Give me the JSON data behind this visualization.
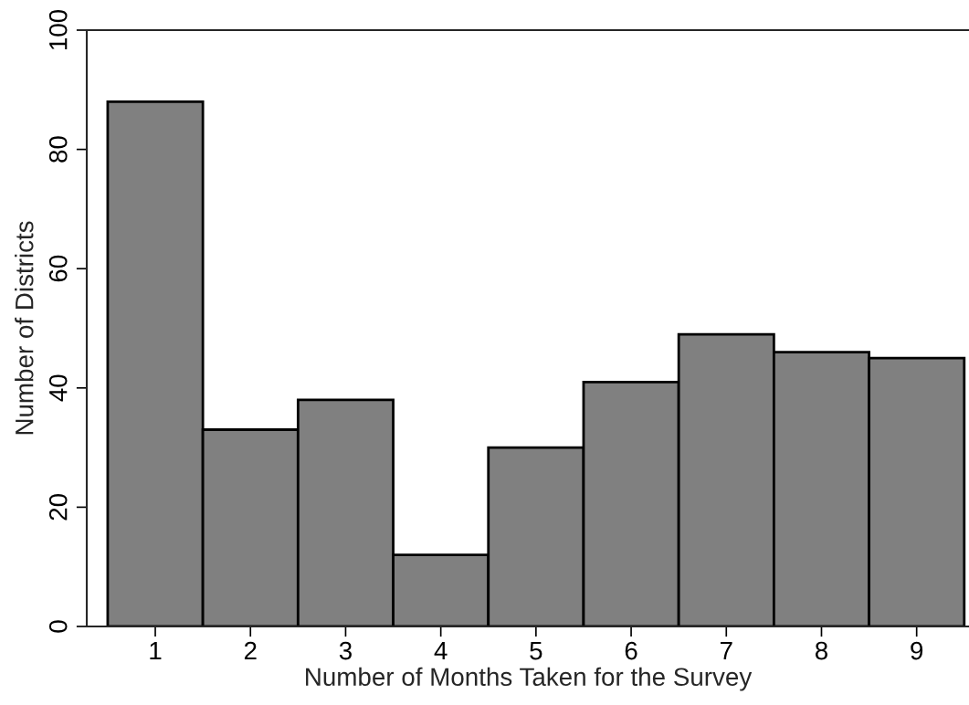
{
  "chart_data": {
    "type": "histogram",
    "xlabel": "Number of Months Taken for the Survey",
    "ylabel": "Number of Districts",
    "bins": [
      0.5,
      1.5,
      2.5,
      3.5,
      4.5,
      5.5,
      6.5,
      7.5,
      8.5,
      9.5
    ],
    "values": [
      88,
      33,
      38,
      12,
      30,
      41,
      49,
      46,
      45
    ],
    "color": "#808080",
    "xlim": [
      0.28,
      9.55
    ],
    "xticks": [
      1,
      2,
      3,
      4,
      5,
      6,
      7,
      8,
      9
    ],
    "ylim": [
      0,
      100
    ],
    "yticks": [
      0,
      20,
      40,
      60,
      80,
      100
    ],
    "grid": false
  }
}
